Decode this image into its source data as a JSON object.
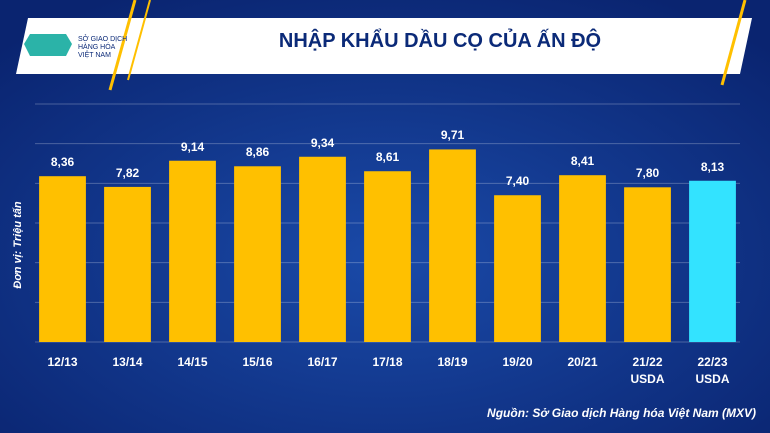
{
  "logo_text": "SỞ GIAO DỊCH\nHÀNG HÓA\nVIỆT NAM",
  "chart_data": {
    "type": "bar",
    "title": "NHẬP KHẨU DẦU CỌ CỦA ẤN ĐỘ",
    "y_label": "Đơn vị: Triệu tấn",
    "source": "Nguồn: Sở Giao dịch Hàng hóa Việt Nam (MXV)",
    "categories": [
      "12/13",
      "13/14",
      "14/15",
      "15/16",
      "16/17",
      "17/18",
      "18/19",
      "19/20",
      "20/21",
      "21/22\nUSDA",
      "22/23\nUSDA"
    ],
    "values": [
      8.36,
      7.82,
      9.14,
      8.86,
      9.34,
      8.61,
      9.71,
      7.4,
      8.41,
      7.8,
      8.13
    ],
    "value_labels": [
      "8,36",
      "7,82",
      "9,14",
      "8,86",
      "9,34",
      "8,61",
      "9,71",
      "7,40",
      "8,41",
      "7,80",
      "8,13"
    ],
    "colors": [
      "#ffc000",
      "#ffc000",
      "#ffc000",
      "#ffc000",
      "#ffc000",
      "#ffc000",
      "#ffc000",
      "#ffc000",
      "#ffc000",
      "#ffc000",
      "#33e3ff"
    ],
    "ylim": [
      0,
      12
    ],
    "yticks": [
      0,
      2,
      4,
      6,
      8,
      10,
      12
    ],
    "grid": true
  }
}
